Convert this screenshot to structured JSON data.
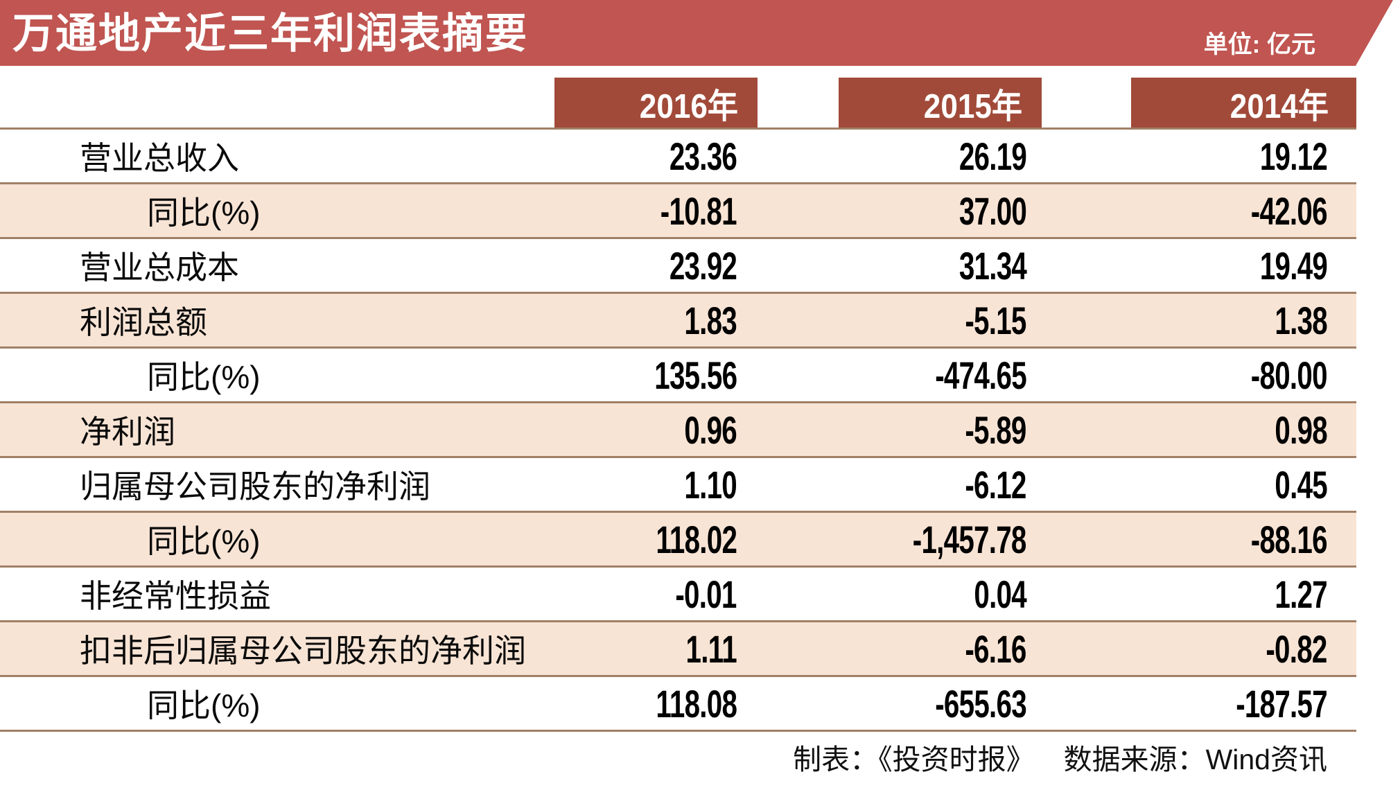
{
  "header": {
    "title": "万通地产近三年利润表摘要",
    "unit_label": "单位: 亿元"
  },
  "columns": [
    "2016年",
    "2015年",
    "2014年"
  ],
  "rows": [
    {
      "label": "营业总收入",
      "indent": false,
      "values": [
        "23.36",
        "26.19",
        "19.12"
      ]
    },
    {
      "label": "同比(%)",
      "indent": true,
      "values": [
        "-10.81",
        "37.00",
        "-42.06"
      ]
    },
    {
      "label": "营业总成本",
      "indent": false,
      "values": [
        "23.92",
        "31.34",
        "19.49"
      ]
    },
    {
      "label": "利润总额",
      "indent": false,
      "values": [
        "1.83",
        "-5.15",
        "1.38"
      ]
    },
    {
      "label": "同比(%)",
      "indent": true,
      "values": [
        "135.56",
        "-474.65",
        "-80.00"
      ]
    },
    {
      "label": "净利润",
      "indent": false,
      "values": [
        "0.96",
        "-5.89",
        "0.98"
      ]
    },
    {
      "label": "归属母公司股东的净利润",
      "indent": false,
      "values": [
        "1.10",
        "-6.12",
        "0.45"
      ]
    },
    {
      "label": "同比(%)",
      "indent": true,
      "values": [
        "118.02",
        "-1,457.78",
        "-88.16"
      ]
    },
    {
      "label": "非经常性损益",
      "indent": false,
      "values": [
        "-0.01",
        "0.04",
        "1.27"
      ]
    },
    {
      "label": "扣非后归属母公司股东的净利润",
      "indent": false,
      "values": [
        "1.11",
        "-6.16",
        "-0.82"
      ]
    },
    {
      "label": "同比(%)",
      "indent": true,
      "values": [
        "118.08",
        "-655.63",
        "-187.57"
      ]
    }
  ],
  "footer": {
    "credit": "制表：《投资时报》",
    "source": "数据来源：Wind资讯"
  },
  "colors": {
    "banner_red": "#c05551",
    "year_box_red": "#a14a39",
    "row_pink": "#f8e4d5",
    "separator_brown": "#a07f66",
    "text_black": "#000000",
    "text_white": "#ffffff"
  },
  "chart_data": {
    "type": "table",
    "title": "万通地产近三年利润表摘要",
    "unit": "亿元",
    "columns": [
      "2016年",
      "2015年",
      "2014年"
    ],
    "row_labels": [
      "营业总收入",
      "同比(%)",
      "营业总成本",
      "利润总额",
      "同比(%)",
      "净利润",
      "归属母公司股东的净利润",
      "同比(%)",
      "非经常性损益",
      "扣非后归属母公司股东的净利润",
      "同比(%)"
    ],
    "series": [
      {
        "name": "2016年",
        "values": [
          23.36,
          -10.81,
          23.92,
          1.83,
          135.56,
          0.96,
          1.1,
          118.02,
          -0.01,
          1.11,
          118.08
        ]
      },
      {
        "name": "2015年",
        "values": [
          26.19,
          37.0,
          31.34,
          -5.15,
          -474.65,
          -5.89,
          -6.12,
          -1457.78,
          0.04,
          -6.16,
          -655.63
        ]
      },
      {
        "name": "2014年",
        "values": [
          19.12,
          -42.06,
          19.49,
          1.38,
          -80.0,
          0.98,
          0.45,
          -88.16,
          1.27,
          -0.82,
          -187.57
        ]
      }
    ],
    "credit": "制表：《投资时报》",
    "source": "数据来源：Wind资讯"
  }
}
